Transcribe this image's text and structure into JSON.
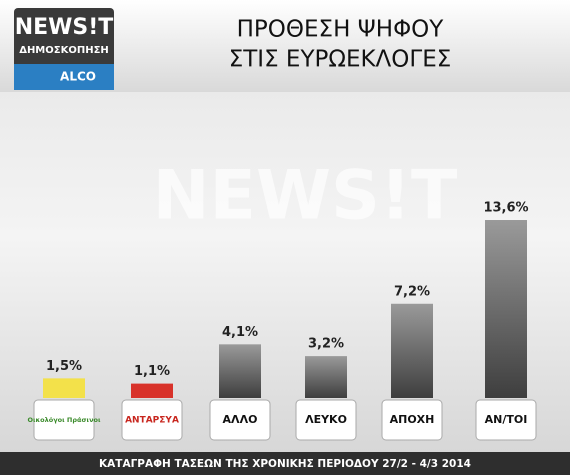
{
  "chart_data": {
    "type": "bar",
    "brand": {
      "name": "NEWS!T",
      "subtitle": "ΔΗΜΟΣΚΟΠΗΣΗ",
      "partner": "ALCO"
    },
    "title_lines": [
      "ΠΡΟΘΕΣΗ ΨΗΦΟΥ",
      "ΣΤΙΣ ΕΥΡΩΕΚΛΟΓΕΣ"
    ],
    "categories": [
      "Οικολόγοι Πράσινοι",
      "ΑΝΤΑΡΣΥΑ",
      "ΑΛΛΟ",
      "ΛΕΥΚΟ",
      "ΑΠΟΧΗ",
      "ΑΝ/ΤΟΙ"
    ],
    "values": [
      1.5,
      1.1,
      4.1,
      3.2,
      7.2,
      13.6
    ],
    "value_labels": [
      "1,5%",
      "1,1%",
      "4,1%",
      "3,2%",
      "7,2%",
      "13,6%"
    ],
    "colors": [
      "#f3e14a",
      "#d8322a",
      "#6a6a6a",
      "#6a6a6a",
      "#6a6a6a",
      "#6a6a6a"
    ],
    "footer": "ΚΑΤΑΓΡΑΦΗ ΤΑΣΕΩΝ ΤΗΣ ΧΡΟΝΙΚΗΣ ΠΕΡΙΟΔΟΥ 27/2 - 4/3 2014"
  }
}
